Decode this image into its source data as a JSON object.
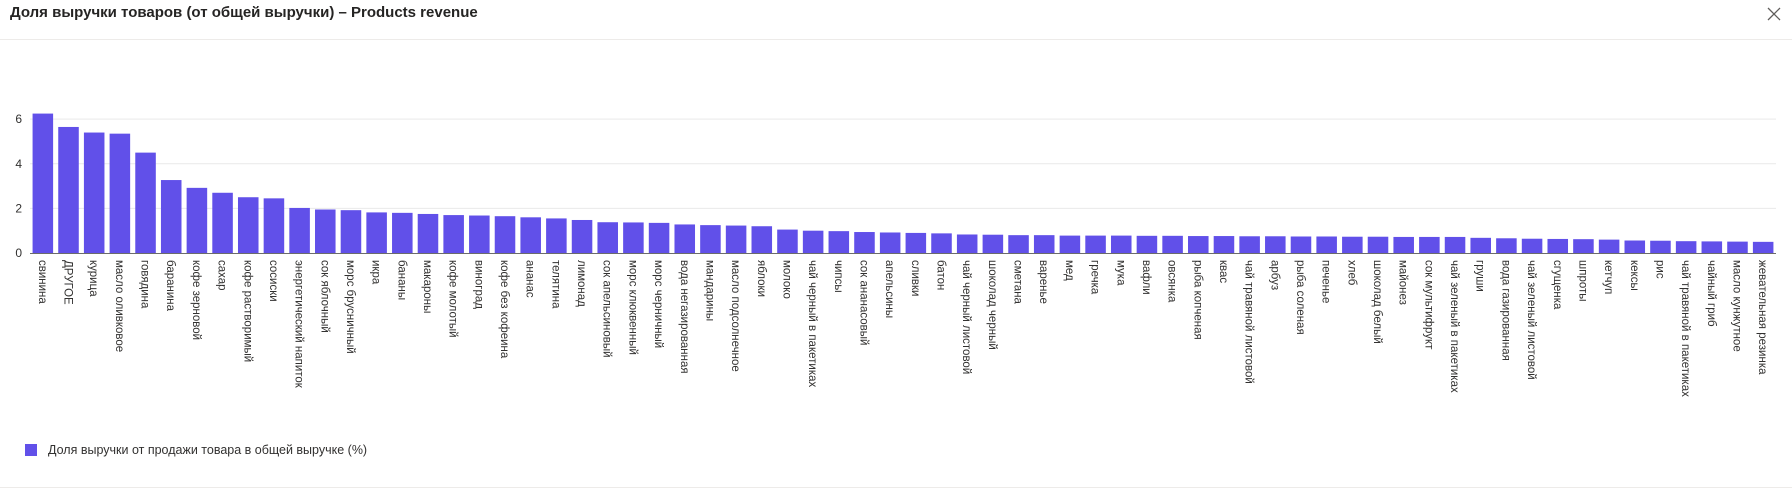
{
  "header": {
    "title": "Доля выручки товаров (от общей выручки) – Products revenue",
    "close_icon": "close-icon"
  },
  "legend": {
    "label": "Доля выручки от продажи товара в общей выручке (%)"
  },
  "colors": {
    "bar": "#6150e9",
    "grid": "#e9e9e9",
    "axis": "#6b6b6b"
  },
  "chart_data": {
    "type": "bar",
    "title": "",
    "xlabel": "",
    "ylabel": "",
    "ylim": [
      0,
      7
    ],
    "yticks": [
      0,
      2,
      4,
      6
    ],
    "grid": true,
    "legend_position": "bottom-left",
    "categories": [
      "свинина",
      "ДРУГОЕ",
      "курица",
      "масло оливковое",
      "говядина",
      "баранина",
      "кофе зерновой",
      "сахар",
      "кофе растворимый",
      "сосиски",
      "энергетический напиток",
      "сок яблочный",
      "морс брусничный",
      "икра",
      "бананы",
      "макароны",
      "кофе молотый",
      "виноград",
      "кофе без кофеина",
      "ананас",
      "телятина",
      "лимонад",
      "сок апельсиновый",
      "морс клюквенный",
      "морс черничный",
      "вода негазированная",
      "мандарины",
      "масло подсолнечное",
      "яблоки",
      "молоко",
      "чай черный в пакетиках",
      "чипсы",
      "сок ананасовый",
      "апельсины",
      "сливки",
      "батон",
      "чай черный листовой",
      "шоколад черный",
      "сметана",
      "варенье",
      "мед",
      "гречка",
      "мука",
      "вафли",
      "овсянка",
      "рыба копченая",
      "квас",
      "чай травяной листовой",
      "арбуз",
      "рыба соленая",
      "печенье",
      "хлеб",
      "шоколад белый",
      "майонез",
      "сок мультифрукт",
      "чай зеленый в пакетиках",
      "груши",
      "вода газированная",
      "чай зеленый листовой",
      "сгущенка",
      "шпроты",
      "кетчуп",
      "кексы",
      "рис",
      "чай травяной в пакетиках",
      "чайный гриб",
      "масло кунжутное",
      "жевательная резинка"
    ],
    "series": [
      {
        "values": [
          6.25,
          5.65,
          5.4,
          5.35,
          4.5,
          3.27,
          2.92,
          2.7,
          2.5,
          2.45,
          2.02,
          1.95,
          1.92,
          1.82,
          1.8,
          1.75,
          1.7,
          1.68,
          1.65,
          1.6,
          1.55,
          1.48,
          1.38,
          1.37,
          1.35,
          1.28,
          1.25,
          1.23,
          1.2,
          1.05,
          1.0,
          0.98,
          0.94,
          0.92,
          0.9,
          0.88,
          0.83,
          0.82,
          0.8,
          0.8,
          0.78,
          0.78,
          0.78,
          0.77,
          0.77,
          0.76,
          0.76,
          0.75,
          0.75,
          0.74,
          0.74,
          0.73,
          0.73,
          0.72,
          0.72,
          0.72,
          0.68,
          0.66,
          0.64,
          0.63,
          0.62,
          0.6,
          0.56,
          0.55,
          0.53,
          0.52,
          0.51,
          0.5
        ]
      }
    ]
  }
}
